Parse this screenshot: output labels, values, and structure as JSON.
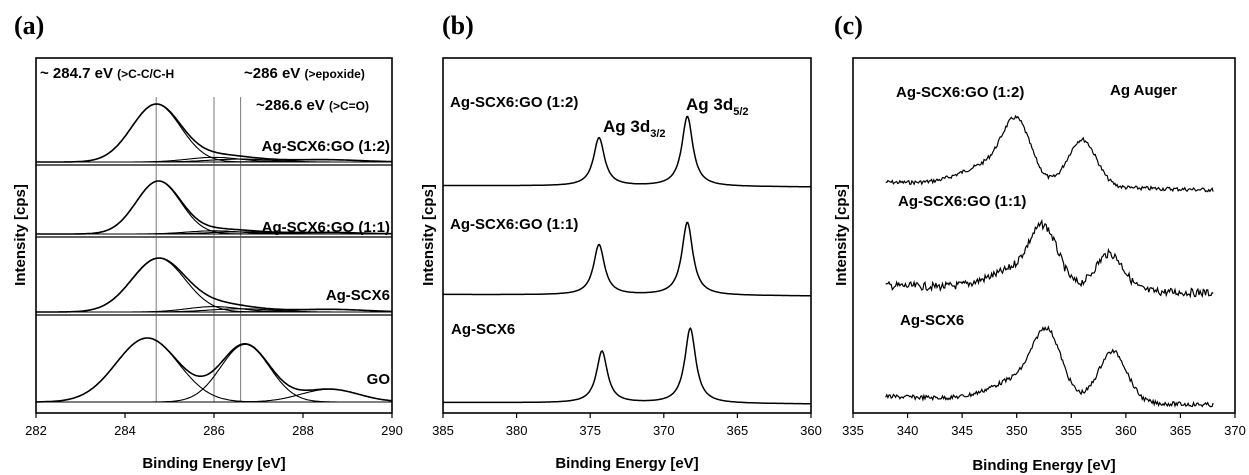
{
  "chart_data": [
    {
      "panel": "(a)",
      "type": "line",
      "xlabel": "Binding Energy [eV]",
      "ylabel": "Intensity [cps]",
      "xlim": [
        282,
        290
      ],
      "xticks": [
        282,
        284,
        286,
        288,
        290
      ],
      "annotations": {
        "line1_pre": "~ 284.7 eV ",
        "line1_small": "(>C-C/C-H",
        "line2_pre": "~286 eV ",
        "line2_small": "(>epoxide)",
        "line3_pre": "~286.6 eV ",
        "line3_small": "(>C=O)"
      },
      "reference_lines_eV": [
        284.7,
        286.0,
        286.6
      ],
      "series": [
        {
          "name": "Ag-SCX6:GO (1:2)",
          "components": [
            {
              "center": 284.7,
              "amp": 1.0,
              "width": 0.55
            },
            {
              "center": 286.0,
              "amp": 0.08,
              "width": 0.6
            },
            {
              "center": 286.6,
              "amp": 0.05,
              "width": 0.7
            },
            {
              "center": 288.5,
              "amp": 0.04,
              "width": 0.8
            }
          ]
        },
        {
          "name": "Ag-SCX6:GO (1:1)",
          "components": [
            {
              "center": 284.75,
              "amp": 1.0,
              "width": 0.5
            },
            {
              "center": 286.0,
              "amp": 0.06,
              "width": 0.6
            },
            {
              "center": 286.6,
              "amp": 0.04,
              "width": 0.7
            },
            {
              "center": 288.5,
              "amp": 0.03,
              "width": 0.8
            }
          ]
        },
        {
          "name": "Ag-SCX6",
          "components": [
            {
              "center": 284.75,
              "amp": 1.0,
              "width": 0.6
            },
            {
              "center": 286.0,
              "amp": 0.1,
              "width": 0.6
            },
            {
              "center": 286.6,
              "amp": 0.06,
              "width": 0.7
            },
            {
              "center": 288.6,
              "amp": 0.05,
              "width": 0.8
            }
          ]
        },
        {
          "name": "GO",
          "components": [
            {
              "center": 284.5,
              "amp": 1.0,
              "width": 0.7
            },
            {
              "center": 286.7,
              "amp": 0.9,
              "width": 0.55
            },
            {
              "center": 288.6,
              "amp": 0.2,
              "width": 0.65
            }
          ]
        }
      ]
    },
    {
      "panel": "(b)",
      "type": "line",
      "xlabel": "Binding Energy [eV]",
      "ylabel": "Intensity [cps]",
      "xlim": [
        385,
        360
      ],
      "xticks": [
        385,
        380,
        375,
        370,
        365,
        360
      ],
      "peak_labels": [
        {
          "main": "Ag 3d",
          "sub": "3/2"
        },
        {
          "main": "Ag 3d",
          "sub": "5/2"
        }
      ],
      "series": [
        {
          "name": "Ag-SCX6:GO (1:2)",
          "peaks": [
            {
              "center": 374.4,
              "amp": 1.0
            },
            {
              "center": 368.4,
              "amp": 1.45
            }
          ]
        },
        {
          "name": "Ag-SCX6:GO (1:1)",
          "peaks": [
            {
              "center": 374.4,
              "amp": 1.0
            },
            {
              "center": 368.4,
              "amp": 1.45
            }
          ]
        },
        {
          "name": "Ag-SCX6",
          "peaks": [
            {
              "center": 374.2,
              "amp": 1.0
            },
            {
              "center": 368.2,
              "amp": 1.45
            }
          ]
        }
      ]
    },
    {
      "panel": "(c)",
      "type": "line",
      "xlabel": "Binding Energy  [eV]",
      "ylabel": "Intensity [cps]",
      "xlim": [
        335,
        370
      ],
      "xticks": [
        335,
        340,
        345,
        350,
        355,
        360,
        365,
        370
      ],
      "title_annotation": "Ag Auger",
      "series": [
        {
          "name": "Ag-SCX6:GO (1:2)",
          "peaks": [
            {
              "center": 350,
              "amp": 1.0
            },
            {
              "center": 356,
              "amp": 0.85
            }
          ]
        },
        {
          "name": "Ag-SCX6:GO (1:1)",
          "peaks": [
            {
              "center": 352.5,
              "amp": 1.0
            },
            {
              "center": 358.5,
              "amp": 0.7
            }
          ]
        },
        {
          "name": "Ag-SCX6",
          "peaks": [
            {
              "center": 352.8,
              "amp": 1.0
            },
            {
              "center": 358.8,
              "amp": 0.85
            }
          ]
        }
      ]
    }
  ]
}
